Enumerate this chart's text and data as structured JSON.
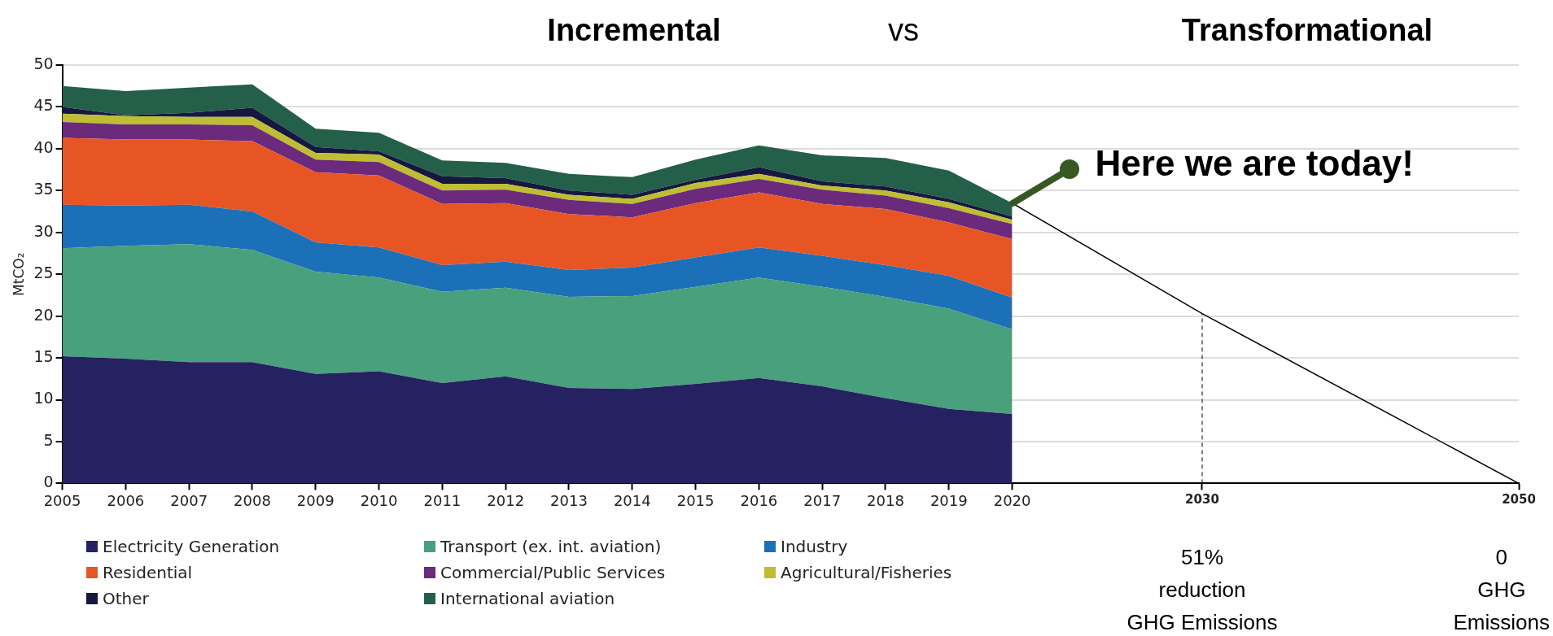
{
  "chart_data": {
    "type": "area",
    "stacked": true,
    "ylabel": "MtCO₂",
    "categories": [
      "2005",
      "2006",
      "2007",
      "2008",
      "2009",
      "2010",
      "2011",
      "2012",
      "2013",
      "2014",
      "2015",
      "2016",
      "2017",
      "2018",
      "2019",
      "2020",
      null,
      null,
      "2030",
      null,
      null,
      null,
      null,
      "2050"
    ],
    "ylim": [
      0,
      50
    ],
    "yticks": [
      0,
      5,
      10,
      15,
      20,
      25,
      30,
      35,
      40,
      45,
      50
    ],
    "grid": "y",
    "legend": "bottom",
    "series": [
      {
        "name": "Electricity Generation",
        "color": "#262262",
        "values": [
          15.2,
          14.9,
          14.5,
          14.5,
          13.1,
          13.4,
          12.0,
          12.8,
          11.4,
          11.3,
          11.9,
          12.6,
          11.6,
          10.2,
          8.9,
          8.3,
          null,
          null,
          null,
          null,
          null,
          null,
          null,
          null
        ]
      },
      {
        "name": "Transport (ex. int. aviation)",
        "color": "#48a07c",
        "values": [
          12.9,
          13.5,
          14.1,
          13.4,
          12.2,
          11.2,
          10.9,
          10.6,
          10.9,
          11.1,
          11.6,
          12.0,
          11.9,
          12.1,
          12.0,
          10.1,
          null,
          null,
          null,
          null,
          null,
          null,
          null,
          null
        ]
      },
      {
        "name": "Industry",
        "color": "#1b70b8",
        "values": [
          5.2,
          4.8,
          4.7,
          4.6,
          3.5,
          3.6,
          3.2,
          3.1,
          3.2,
          3.4,
          3.5,
          3.6,
          3.7,
          3.8,
          3.9,
          3.8,
          null,
          null,
          null,
          null,
          null,
          null,
          null,
          null
        ]
      },
      {
        "name": "Residential",
        "color": "#e85525",
        "values": [
          8.0,
          7.9,
          7.8,
          8.4,
          8.4,
          8.6,
          7.3,
          7.0,
          6.7,
          6.0,
          6.5,
          6.6,
          6.2,
          6.7,
          6.4,
          7.0,
          null,
          null,
          null,
          null,
          null,
          null,
          null,
          null
        ]
      },
      {
        "name": "Commercial/Public Services",
        "color": "#6b2a7c",
        "values": [
          1.9,
          1.8,
          1.8,
          1.9,
          1.5,
          1.6,
          1.6,
          1.6,
          1.7,
          1.6,
          1.7,
          1.6,
          1.7,
          1.6,
          1.7,
          1.8,
          null,
          null,
          null,
          null,
          null,
          null,
          null,
          null
        ]
      },
      {
        "name": "Agricultural/Fisheries",
        "color": "#bfbd33",
        "values": [
          1.0,
          1.0,
          0.9,
          1.0,
          0.8,
          0.9,
          0.8,
          0.7,
          0.6,
          0.6,
          0.7,
          0.6,
          0.5,
          0.6,
          0.7,
          0.5,
          null,
          null,
          null,
          null,
          null,
          null,
          null,
          null
        ]
      },
      {
        "name": "Other",
        "color": "#161840",
        "values": [
          0.8,
          0.1,
          0.5,
          1.1,
          0.7,
          0.4,
          0.9,
          0.7,
          0.5,
          0.5,
          0.4,
          0.8,
          0.5,
          0.5,
          0.4,
          0.4,
          null,
          null,
          null,
          null,
          null,
          null,
          null,
          null
        ]
      },
      {
        "name": "International aviation",
        "color": "#245f4a",
        "values": [
          2.5,
          2.9,
          3.0,
          2.8,
          2.2,
          2.2,
          1.9,
          1.8,
          2.0,
          2.1,
          2.4,
          2.6,
          3.1,
          3.4,
          3.4,
          1.6,
          null,
          null,
          null,
          null,
          null,
          null,
          null,
          null
        ]
      },
      {
        "type": "line",
        "color": "#000000",
        "values": [
          null,
          null,
          null,
          null,
          null,
          null,
          null,
          null,
          null,
          null,
          null,
          null,
          null,
          null,
          null,
          33.5,
          null,
          null,
          20.3,
          null,
          null,
          null,
          null,
          0
        ]
      }
    ],
    "ref_lines": [
      {
        "axis": "x",
        "value": "2030",
        "color": "#000000",
        "line_style": "dashed"
      }
    ],
    "annotations": [
      "Incremental",
      "vs",
      "Transformational",
      {
        "text": "Here we are today!",
        "x": "2020",
        "y": 33.5
      },
      {
        "text": "51%\nreduction\nGHG Emissions",
        "x": "2030",
        "y": 0
      },
      {
        "text": "0\nGHG\nEmissions",
        "x": "2050",
        "y": 0
      }
    ]
  }
}
